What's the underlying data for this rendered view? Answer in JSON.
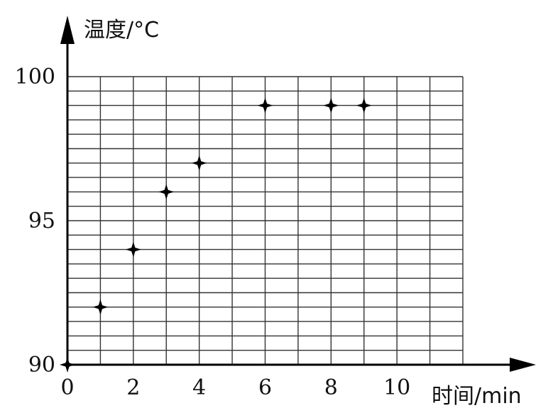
{
  "chart_data": {
    "type": "scatter",
    "title": "",
    "ylabel": "温度/°C",
    "xlabel": "时间/min",
    "x_ticks": [
      "0",
      "2",
      "4",
      "6",
      "8",
      "10"
    ],
    "y_ticks": [
      "90",
      "95",
      "100"
    ],
    "xlim": [
      0,
      12
    ],
    "ylim": [
      90,
      100
    ],
    "grid": true,
    "series": [
      {
        "x": [
          0,
          1,
          2,
          3,
          4,
          6,
          8,
          9
        ],
        "y": [
          90,
          92,
          94,
          96,
          97,
          99,
          99,
          99
        ]
      }
    ]
  }
}
